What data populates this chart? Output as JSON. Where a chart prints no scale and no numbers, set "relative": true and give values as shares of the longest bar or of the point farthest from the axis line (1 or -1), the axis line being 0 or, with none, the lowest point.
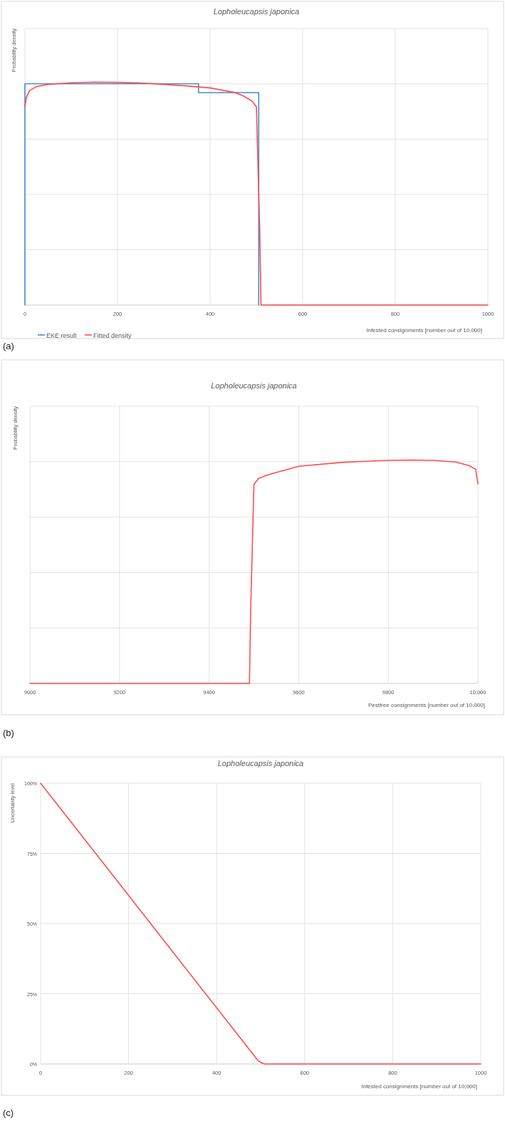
{
  "chart_data": [
    {
      "type": "line",
      "title": "Lopholeucapsis japonica",
      "xlabel": "Infested consignments [number out of 10,000]",
      "ylabel": "Probability density",
      "relative": true,
      "xlim": [
        0,
        1000
      ],
      "xticks": [
        0,
        200,
        400,
        600,
        800,
        1000
      ],
      "grid": true,
      "legend": "bottom left",
      "annotations": [
        "(a)"
      ],
      "series": [
        {
          "name": "EKE result",
          "color": "#4a8ad0",
          "x": [
            0,
            0,
            375,
            375,
            505,
            505
          ],
          "values": [
            0,
            0.993,
            0.993,
            0.953,
            0.953,
            0
          ]
        },
        {
          "name": "Fitted density",
          "color": "#ff4d4d",
          "x": [
            0,
            3,
            10,
            25,
            50,
            100,
            150,
            200,
            250,
            300,
            350,
            400,
            450,
            470,
            490,
            500,
            507,
            510,
            1000
          ],
          "values": [
            0.89,
            0.93,
            0.962,
            0.98,
            0.99,
            0.997,
            1,
            0.999,
            0.996,
            0.99,
            0.983,
            0.974,
            0.955,
            0.94,
            0.916,
            0.89,
            0.35,
            0,
            0
          ]
        }
      ]
    },
    {
      "type": "line",
      "title": "Lopholeucapsis japonica",
      "xlabel": "Pestfree consignments [number out of 10,000]",
      "ylabel": "Probability density",
      "relative": true,
      "xlim": [
        9000,
        10000
      ],
      "xticks": [
        9000,
        9200,
        9400,
        9600,
        9800,
        {
          "value": 10000,
          "label": "10,000"
        }
      ],
      "grid": true,
      "annotations": [
        "(b)"
      ],
      "series": [
        {
          "color": "#ff4d4d",
          "x": [
            9000,
            9490,
            9493,
            9500,
            9510,
            9530,
            9600,
            9700,
            9800,
            9850,
            9900,
            9950,
            9980,
            9995,
            10000
          ],
          "values": [
            0,
            0,
            0.35,
            0.89,
            0.917,
            0.933,
            0.972,
            0.99,
            0.9985,
            1,
            0.9985,
            0.991,
            0.975,
            0.958,
            0.893
          ]
        }
      ]
    },
    {
      "type": "line",
      "title": "Lopholeucapsis japonica",
      "xlabel": "Infested consignments [number out of 10,000]",
      "ylabel": "Uncertainty level",
      "xlim": [
        0,
        1000
      ],
      "xticks": [
        0,
        200,
        400,
        600,
        800,
        1000
      ],
      "ylim": [
        0,
        100
      ],
      "yticks": [
        {
          "value": 0,
          "label": "0%"
        },
        {
          "value": 25,
          "label": "25%"
        },
        {
          "value": 50,
          "label": "50%"
        },
        {
          "value": 75,
          "label": "75%"
        },
        {
          "value": 100,
          "label": "100%"
        }
      ],
      "grid": true,
      "annotations": [
        "(c)"
      ],
      "series": [
        {
          "color": "#ff4d4d",
          "x": [
            0,
            100,
            200,
            300,
            400,
            495,
            505,
            510,
            1000
          ],
          "values": [
            100,
            80,
            60,
            40,
            20,
            1,
            0.2,
            0,
            0
          ]
        }
      ]
    }
  ]
}
